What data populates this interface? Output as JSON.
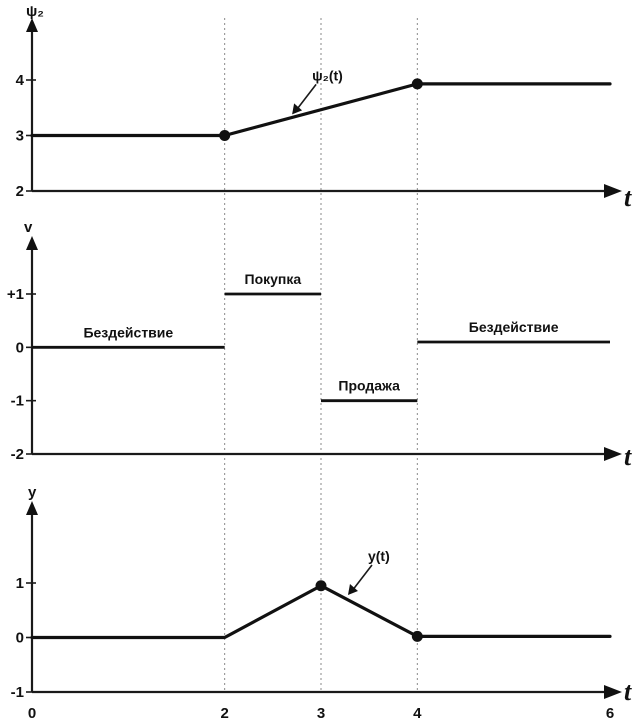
{
  "chart_data": [
    {
      "type": "line",
      "ylabel": "ψ₂",
      "xlabel": "t",
      "ylim": [
        2,
        4
      ],
      "yticks": [
        "2",
        "3",
        "4"
      ],
      "series": [
        {
          "name": "ψ₂(t)",
          "x": [
            0,
            2,
            4,
            6
          ],
          "y": [
            3,
            3,
            3.93,
            3.93
          ]
        }
      ],
      "markers": [
        {
          "x": 2,
          "y": 3
        },
        {
          "x": 4,
          "y": 3.93
        }
      ],
      "annotation": {
        "text": "ψ₂(t)",
        "x": 2.7,
        "y": 3.38
      }
    },
    {
      "type": "line",
      "ylabel": "v",
      "xlabel": "t",
      "ylim": [
        -2,
        1
      ],
      "yticks": [
        "-2",
        "-1",
        "0",
        "+1"
      ],
      "segments": [
        {
          "label": "Бездействие",
          "x0": 0,
          "x1": 2,
          "y": 0
        },
        {
          "label": "Покупка",
          "x0": 2,
          "x1": 3,
          "y": 1
        },
        {
          "label": "Продажа",
          "x0": 3,
          "x1": 4,
          "y": -1
        },
        {
          "label": "Бездействие",
          "x0": 4,
          "x1": 6,
          "y": 0.1
        }
      ]
    },
    {
      "type": "line",
      "ylabel": "y",
      "xlabel": "t",
      "ylim": [
        -1,
        1
      ],
      "yticks": [
        "-1",
        "0",
        "1"
      ],
      "xticks": [
        "0",
        "2",
        "3",
        "4",
        "6"
      ],
      "series": [
        {
          "name": "y(t)",
          "x": [
            0,
            2,
            3,
            4,
            6
          ],
          "y": [
            0,
            0,
            0.95,
            0.02,
            0.02
          ]
        }
      ],
      "markers": [
        {
          "x": 3,
          "y": 0.95
        },
        {
          "x": 4,
          "y": 0.02
        }
      ],
      "annotation": {
        "text": "y(t)",
        "x": 3.28,
        "y": 0.78
      }
    }
  ]
}
